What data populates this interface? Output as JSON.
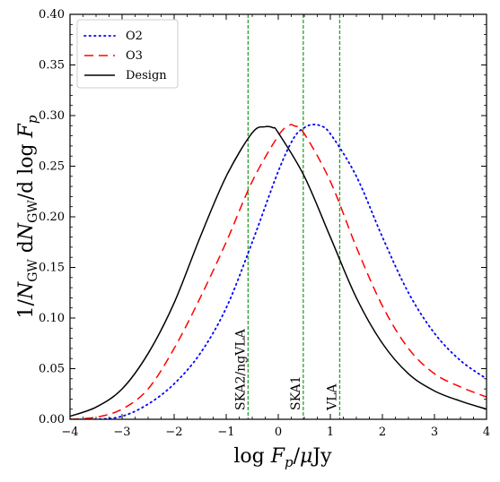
{
  "chart_data": {
    "type": "line",
    "xlabel": "log F_p/μJy",
    "ylabel": "1/N_GW dN_GW/d log F_p",
    "xlim": [
      -4,
      4
    ],
    "ylim": [
      0,
      0.4
    ],
    "xticks": [
      "−4",
      "−3",
      "−2",
      "−1",
      "0",
      "1",
      "2",
      "3",
      "4"
    ],
    "yticks": [
      "0.00",
      "0.05",
      "0.10",
      "0.15",
      "0.20",
      "0.25",
      "0.30",
      "0.35",
      "0.40"
    ],
    "legend_position": "top-left",
    "series": [
      {
        "name": "O2",
        "color": "#0000ff",
        "dash": "dotted",
        "x": [
          -4.0,
          -3.5,
          -3.0,
          -2.5,
          -2.0,
          -1.5,
          -1.0,
          -0.5,
          0.0,
          0.3,
          0.5,
          0.65,
          0.8,
          1.0,
          1.5,
          2.0,
          2.5,
          3.0,
          3.5,
          4.0
        ],
        "y": [
          0.0,
          0.0,
          0.003,
          0.015,
          0.035,
          0.065,
          0.11,
          0.175,
          0.245,
          0.278,
          0.288,
          0.291,
          0.29,
          0.282,
          0.24,
          0.18,
          0.125,
          0.085,
          0.058,
          0.04
        ]
      },
      {
        "name": "O3",
        "color": "#ff0000",
        "dash": "dashed",
        "x": [
          -4.0,
          -3.5,
          -3.0,
          -2.5,
          -2.0,
          -1.5,
          -1.0,
          -0.5,
          0.0,
          0.2,
          0.3,
          0.5,
          1.0,
          1.5,
          2.0,
          2.5,
          3.0,
          3.5,
          4.0
        ],
        "y": [
          0.0,
          0.002,
          0.01,
          0.03,
          0.07,
          0.12,
          0.175,
          0.235,
          0.28,
          0.29,
          0.29,
          0.282,
          0.235,
          0.17,
          0.112,
          0.07,
          0.045,
          0.032,
          0.022
        ]
      },
      {
        "name": "Design",
        "color": "#000000",
        "dash": "solid",
        "x": [
          -4.0,
          -3.5,
          -3.0,
          -2.5,
          -2.0,
          -1.5,
          -1.0,
          -0.5,
          -0.25,
          -0.1,
          0.0,
          0.5,
          1.0,
          1.5,
          2.0,
          2.5,
          3.0,
          3.5,
          4.0
        ],
        "y": [
          0.003,
          0.012,
          0.03,
          0.065,
          0.115,
          0.18,
          0.24,
          0.283,
          0.289,
          0.288,
          0.283,
          0.24,
          0.18,
          0.12,
          0.075,
          0.045,
          0.028,
          0.018,
          0.01
        ]
      }
    ],
    "vlines": [
      {
        "x": -0.58,
        "label": "SKA2/ngVLA",
        "color": "#2ca02c"
      },
      {
        "x": 0.48,
        "label": "SKA1",
        "color": "#2ca02c"
      },
      {
        "x": 1.18,
        "label": "VLA",
        "color": "#2ca02c"
      }
    ]
  }
}
